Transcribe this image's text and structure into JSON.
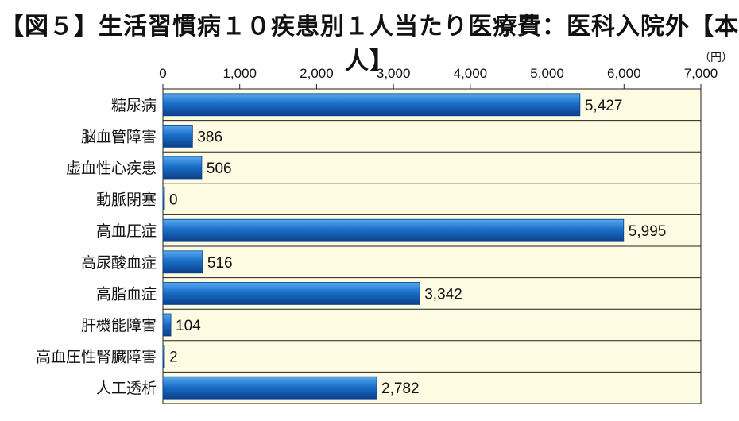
{
  "title": "【図５】生活習慣病１０疾患別１人当たり医療費：医科入院外【本人】",
  "unit": "（円）",
  "colors": {
    "bar": "#1a6fc8",
    "bar_dark": "#0d3f8a",
    "background": "#fdfbe2",
    "grid": "#222222"
  },
  "chart_data": {
    "type": "bar",
    "orientation": "horizontal",
    "title": "【図５】生活習慣病１０疾患別１人当たり医療費：医科入院外【本人】",
    "unit_label": "（円）",
    "xlim": [
      0,
      7000
    ],
    "ticks": [
      0,
      1000,
      2000,
      3000,
      4000,
      5000,
      6000,
      7000
    ],
    "tick_labels": [
      "0",
      "1,000",
      "2,000",
      "3,000",
      "4,000",
      "5,000",
      "6,000",
      "7,000"
    ],
    "axis_position": "top",
    "grid": true,
    "categories": [
      "糖尿病",
      "脳血管障害",
      "虚血性心疾患",
      "動脈閉塞",
      "高血圧症",
      "高尿酸血症",
      "高脂血症",
      "肝機能障害",
      "高血圧性腎臓障害",
      "人工透析"
    ],
    "values": [
      5427,
      386,
      506,
      0,
      5995,
      516,
      3342,
      104,
      2,
      2782
    ],
    "value_labels": [
      "5,427",
      "386",
      "506",
      "0",
      "5,995",
      "516",
      "3,342",
      "104",
      "2",
      "2,782"
    ]
  }
}
